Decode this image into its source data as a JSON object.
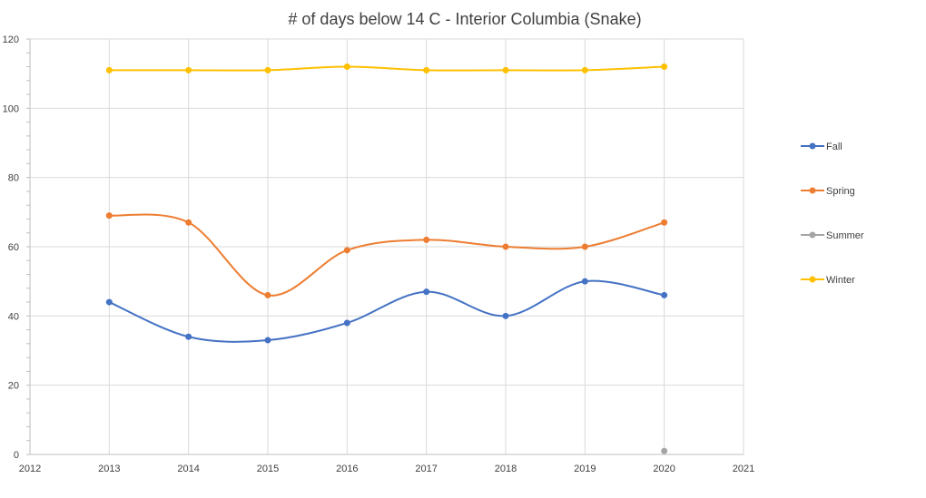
{
  "chart_data": {
    "type": "scatter",
    "title": "# of days below 14 C - Interior Columbia (Snake)",
    "xlabel": "",
    "ylabel": "",
    "xlim": [
      2012,
      2021
    ],
    "ylim": [
      0,
      120
    ],
    "x_ticks": [
      2012,
      2013,
      2014,
      2015,
      2016,
      2017,
      2018,
      2019,
      2020,
      2021
    ],
    "y_ticks": [
      0,
      20,
      40,
      60,
      80,
      100,
      120
    ],
    "grid": true,
    "smooth_lines": true,
    "legend_position": "right",
    "series": [
      {
        "name": "Fall",
        "color": "#4472c4",
        "points": [
          [
            2013,
            44
          ],
          [
            2014,
            34
          ],
          [
            2015,
            33
          ],
          [
            2016,
            38
          ],
          [
            2017,
            47
          ],
          [
            2018,
            40
          ],
          [
            2019,
            50
          ],
          [
            2020,
            46
          ]
        ]
      },
      {
        "name": "Spring",
        "color": "#ed7d31",
        "points": [
          [
            2013,
            69
          ],
          [
            2014,
            67
          ],
          [
            2015,
            46
          ],
          [
            2016,
            59
          ],
          [
            2017,
            62
          ],
          [
            2018,
            60
          ],
          [
            2019,
            60
          ],
          [
            2020,
            67
          ]
        ]
      },
      {
        "name": "Summer",
        "color": "#a5a5a5",
        "points": [
          [
            2020,
            1
          ]
        ]
      },
      {
        "name": "Winter",
        "color": "#ffc000",
        "points": [
          [
            2013,
            111
          ],
          [
            2014,
            111
          ],
          [
            2015,
            111
          ],
          [
            2016,
            112
          ],
          [
            2017,
            111
          ],
          [
            2018,
            111
          ],
          [
            2019,
            111
          ],
          [
            2020,
            112
          ]
        ]
      }
    ]
  }
}
